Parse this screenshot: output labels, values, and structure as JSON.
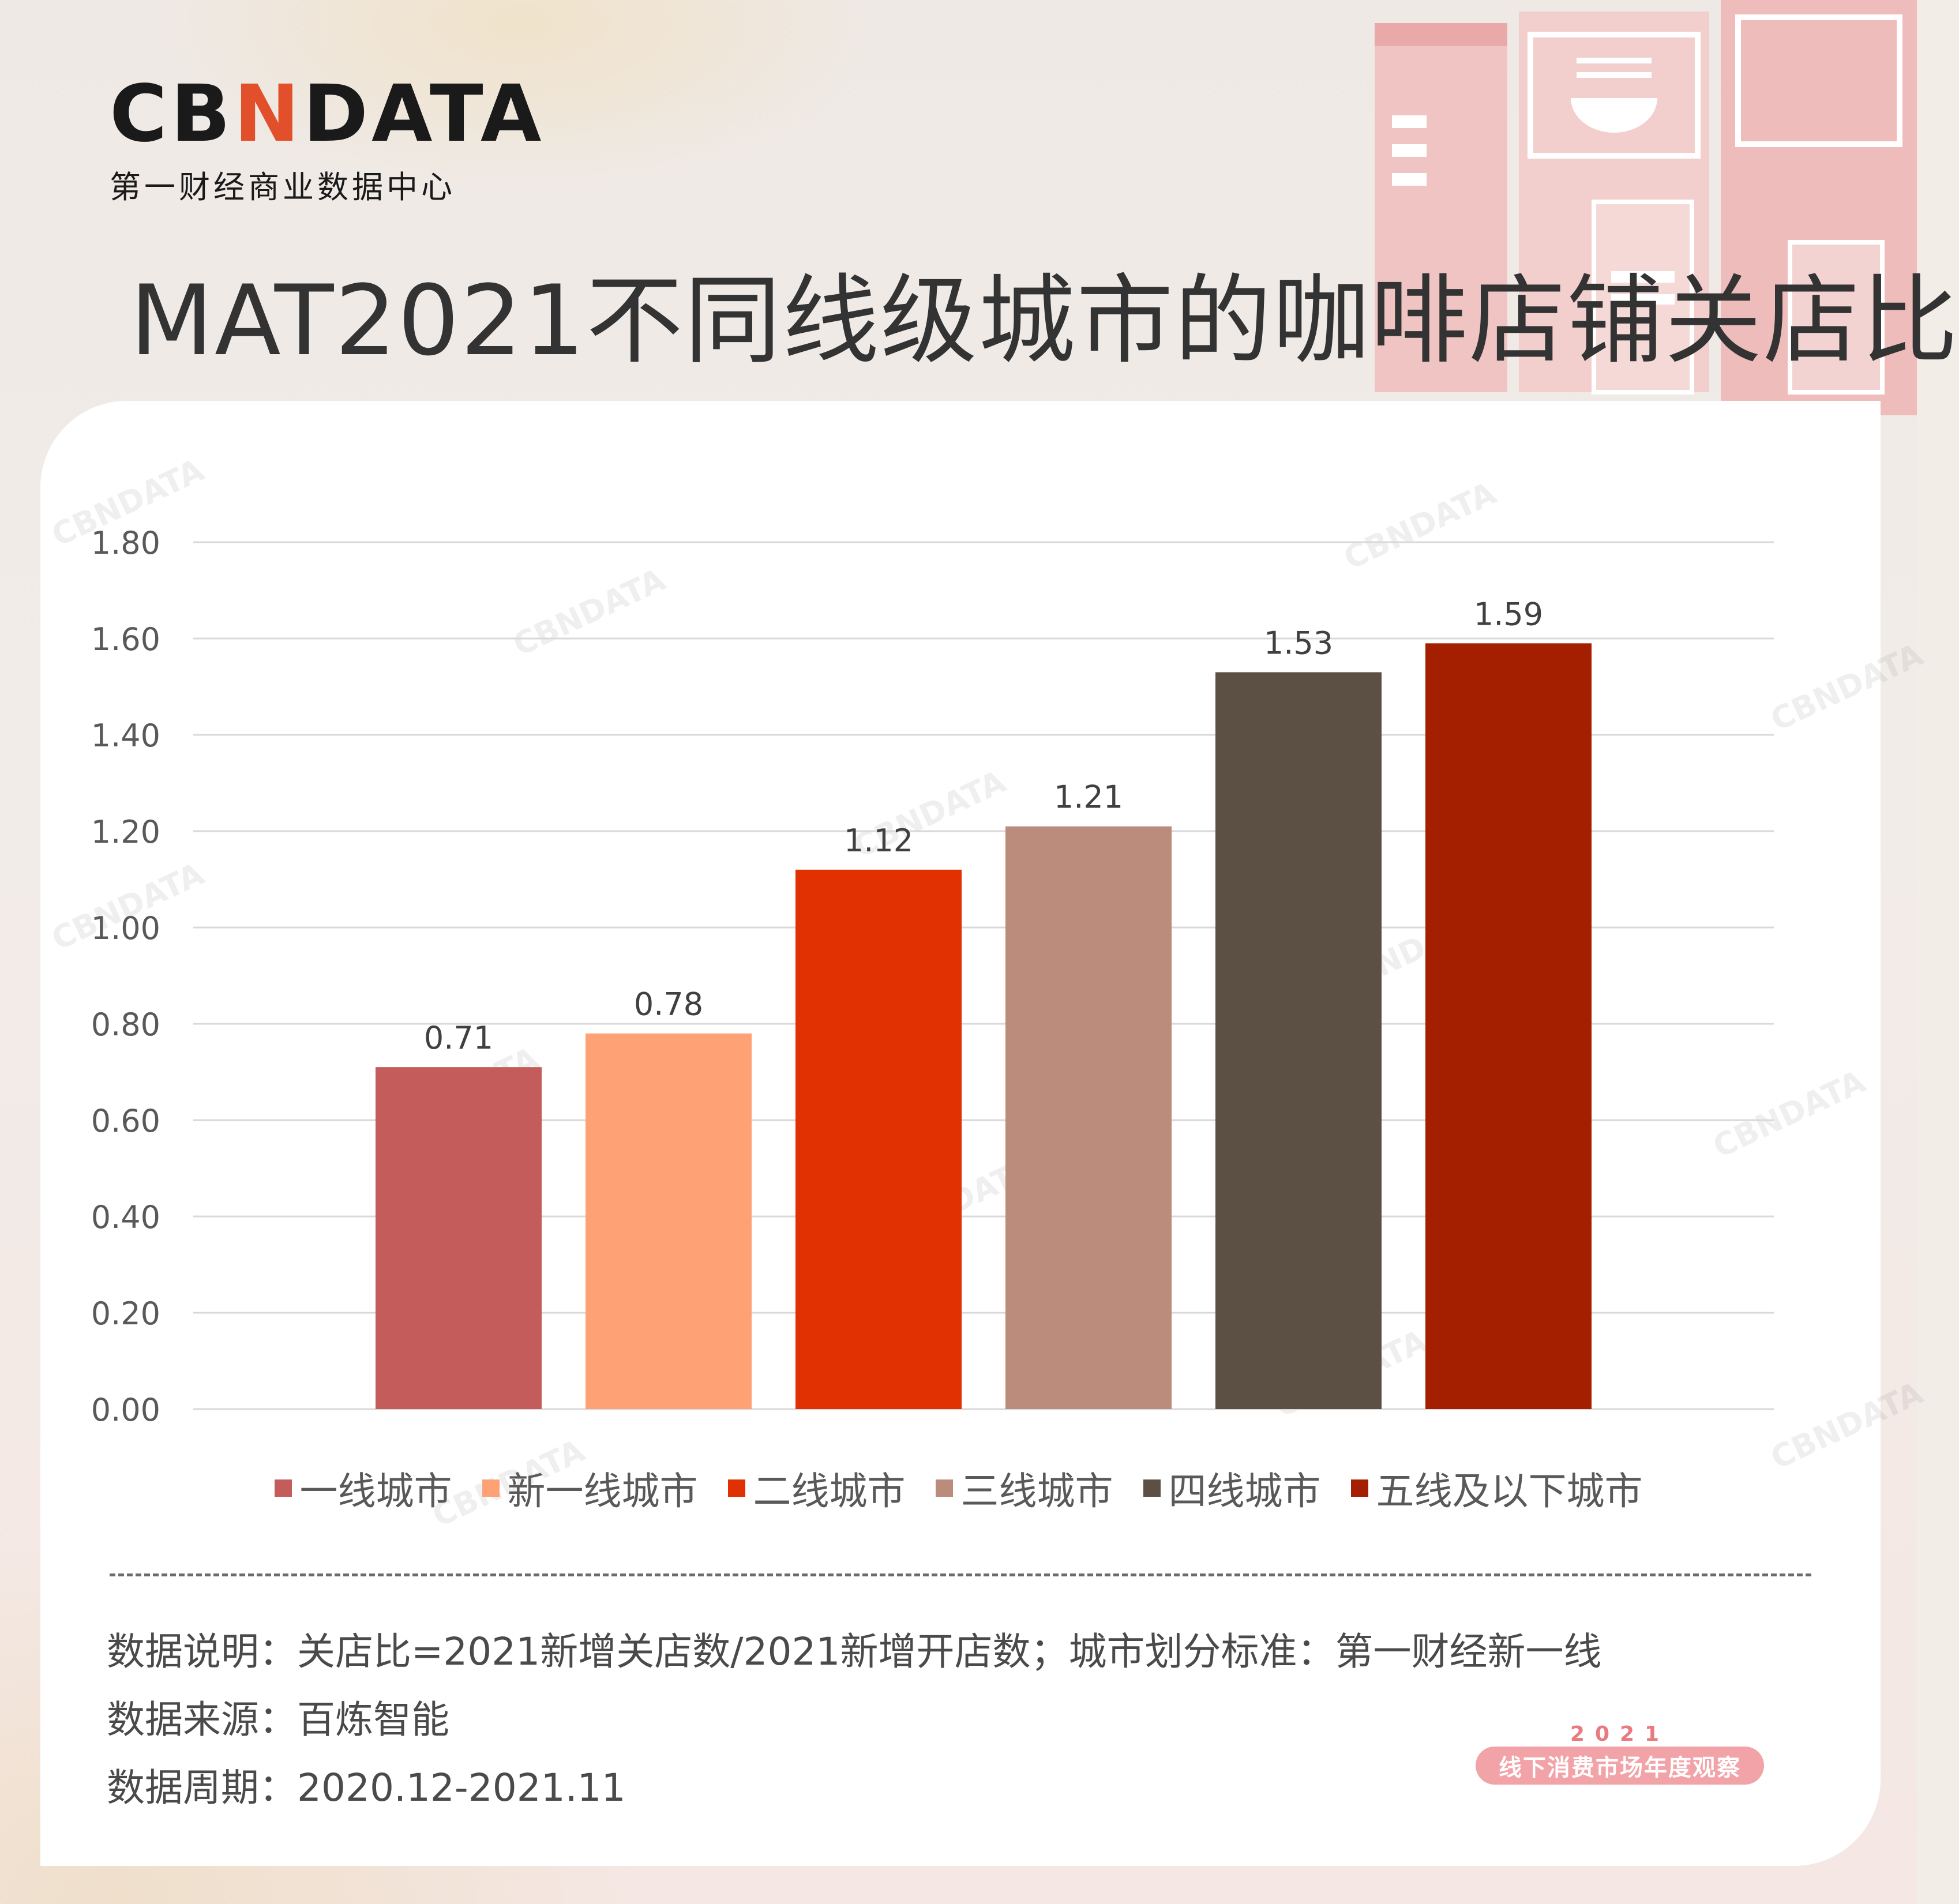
{
  "brand": {
    "logo_text": "CBNDATA",
    "logo_sub": "第一财经商业数据中心"
  },
  "watermark_text": "CBNDATA",
  "chart_data": {
    "type": "bar",
    "title": "MAT2021不同线级城市的咖啡店铺关店比",
    "categories": [
      "一线城市",
      "新一线城市",
      "二线城市",
      "三线城市",
      "四线城市",
      "五线及以下城市"
    ],
    "values": [
      0.71,
      0.78,
      1.12,
      1.21,
      1.53,
      1.59
    ],
    "value_labels": [
      "0.71",
      "0.78",
      "1.12",
      "1.21",
      "1.53",
      "1.59"
    ],
    "colors": [
      "#c45c5b",
      "#fea276",
      "#e13102",
      "#bb8b7c",
      "#5c4f44",
      "#a31f00"
    ],
    "ylim": [
      0,
      1.8
    ],
    "yticks": [
      "0.00",
      "0.20",
      "0.40",
      "0.60",
      "0.80",
      "1.00",
      "1.20",
      "1.40",
      "1.60",
      "1.80"
    ],
    "xlabel": "",
    "ylabel": "",
    "grid": true,
    "legend": "bottom"
  },
  "notes": {
    "explanation": "数据说明：关店比=2021新增关店数/2021新增开店数；城市划分标准：第一财经新一线",
    "source": "数据来源：百炼智能",
    "period": "数据周期：2020.12-2021.11"
  },
  "stamp": {
    "year": "2021",
    "text": "线下消费市场年度观察"
  }
}
